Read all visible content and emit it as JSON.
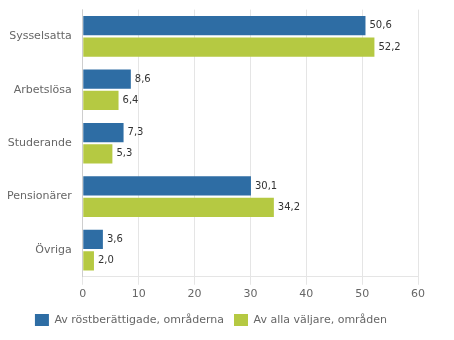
{
  "chart_data": {
    "type": "bar",
    "orientation": "horizontal",
    "categories": [
      "Sysselsatta",
      "Arbetslösa",
      "Studerande",
      "Pensionärer",
      "Övriga"
    ],
    "series": [
      {
        "name": "Av röstberättigade, områderna",
        "color": "#2E6DA4",
        "values": [
          50.6,
          8.6,
          7.3,
          30.1,
          3.6
        ],
        "value_labels": [
          "50,6",
          "8,6",
          "7,3",
          "30,1",
          "3,6"
        ]
      },
      {
        "name": "Av alla väljare, områden",
        "color": "#B5C942",
        "values": [
          52.2,
          6.4,
          5.3,
          34.2,
          2.0
        ],
        "value_labels": [
          "52,2",
          "6,4",
          "5,3",
          "34,2",
          "2,0"
        ]
      }
    ],
    "xlim": [
      0,
      60
    ],
    "xticks": [
      0,
      10,
      20,
      30,
      40,
      50,
      60
    ],
    "grid": "x",
    "legend": "bottom",
    "data_labels": true
  }
}
